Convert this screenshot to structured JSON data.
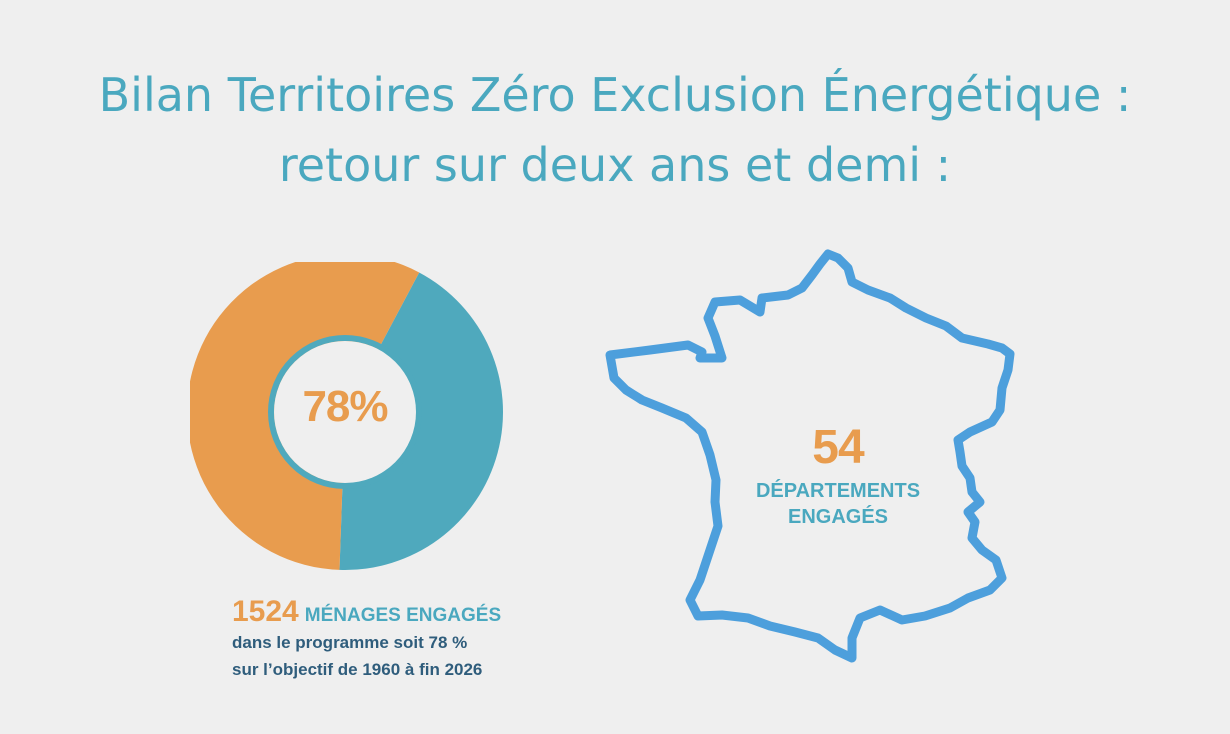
{
  "title": {
    "line1": "Bilan Territoires Zéro Exclusion Énergétique :",
    "line2": "retour sur deux ans et demi :"
  },
  "donut": {
    "percent_label": "78%",
    "value_fraction": 0.78,
    "colors": {
      "engaged": "#e89c4e",
      "remaining": "#4fa9bd",
      "center": "#efefef"
    }
  },
  "households": {
    "count": "1524",
    "label": "MÉNAGES ENGAGÉS",
    "line1": "dans le programme soit 78 %",
    "line2": "sur l’objectif de 1960 à fin 2026"
  },
  "departments": {
    "count": "54",
    "label_line1": "DÉPARTEMENTS",
    "label_line2": "ENGAGÉS",
    "outline_color": "#4d9fdc"
  }
}
